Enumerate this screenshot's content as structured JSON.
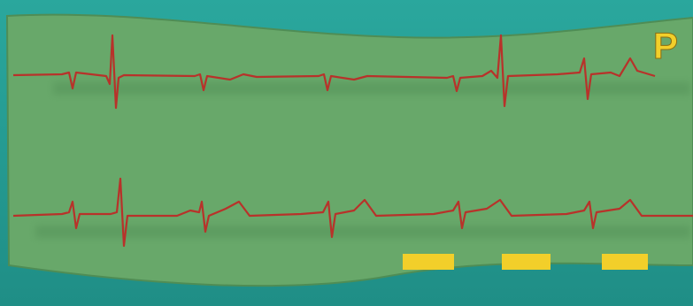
{
  "label": "P"
}
